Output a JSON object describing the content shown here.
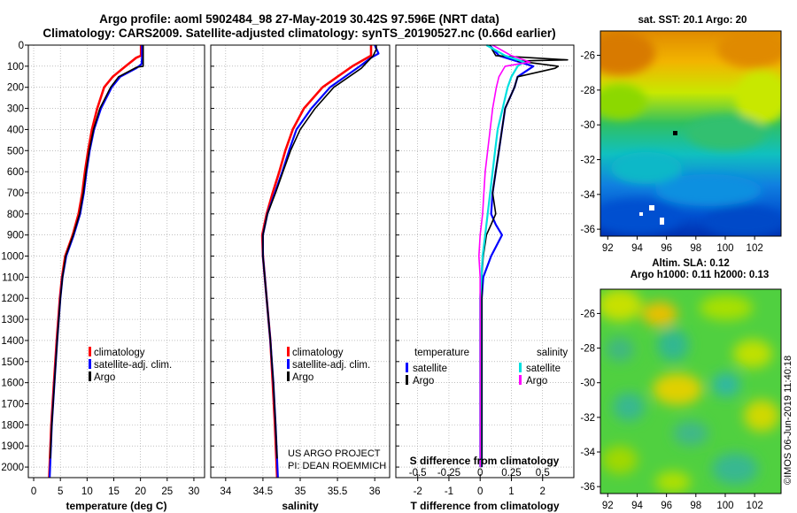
{
  "header": {
    "title_line1": "Argo profile: aoml 5902484_98 27-May-2019 30.42S 97.596E (NRT data)",
    "title_line2": "Climatology: CARS2009. Satellite-adjusted climatology: synTS_20190527.nc (0.66d earlier)"
  },
  "colors": {
    "climatology": "#ff0000",
    "satellite": "#0000ff",
    "argo": "#000000",
    "sat_salinity": "#00e0e0",
    "argo_salinity": "#ff00ff"
  },
  "chart_data": [
    {
      "id": "temperature",
      "type": "line",
      "xlabel": "temperature (deg C)",
      "ylabel": "",
      "xlim": [
        -1,
        32
      ],
      "ylim": [
        2050,
        0
      ],
      "xticks": [
        "0",
        "5",
        "10",
        "15",
        "20",
        "25",
        "30"
      ],
      "yticks": [
        "0",
        "100",
        "200",
        "300",
        "400",
        "500",
        "600",
        "700",
        "800",
        "900",
        "1000",
        "1100",
        "1200",
        "1300",
        "1400",
        "1500",
        "1600",
        "1700",
        "1800",
        "1900",
        "2000"
      ],
      "legend": [
        "climatology",
        "satellite-adj. clim.",
        "Argo"
      ],
      "series": [
        {
          "name": "climatology",
          "depth": [
            0,
            50,
            60,
            100,
            150,
            200,
            300,
            400,
            500,
            600,
            700,
            800,
            900,
            1000,
            1100,
            1200,
            1400,
            1600,
            1800,
            2050
          ],
          "values": [
            20.1,
            20.1,
            19.2,
            17.2,
            14.8,
            13.2,
            11.9,
            10.9,
            10.2,
            9.6,
            9.1,
            8.4,
            7.3,
            5.9,
            5.3,
            4.9,
            4.3,
            3.8,
            3.3,
            2.9
          ]
        },
        {
          "name": "satellite-adj. clim.",
          "depth": [
            0,
            60,
            90,
            110,
            150,
            200,
            300,
            400,
            500,
            600,
            700,
            800,
            900,
            1000,
            1100,
            1200,
            1400,
            1600,
            1800,
            2050
          ],
          "values": [
            20.3,
            20.3,
            20.2,
            19.2,
            16.2,
            14.6,
            12.6,
            11.3,
            10.5,
            9.9,
            9.4,
            8.7,
            7.5,
            6.1,
            5.4,
            5.0,
            4.4,
            3.9,
            3.4,
            3.0
          ]
        },
        {
          "name": "Argo",
          "depth": [
            0,
            100,
            105,
            150,
            200,
            300,
            400,
            500,
            600,
            700,
            800,
            900,
            1000,
            1100,
            1200,
            1400,
            1600,
            1800,
            1960
          ],
          "values": [
            20.5,
            20.5,
            19.3,
            15.9,
            14.4,
            12.4,
            11.2,
            10.4,
            9.8,
            9.3,
            8.6,
            7.4,
            6.0,
            5.4,
            5.0,
            4.4,
            3.9,
            3.4,
            3.1
          ]
        }
      ]
    },
    {
      "id": "salinity",
      "type": "line",
      "xlabel": "salinity",
      "xlim": [
        33.8,
        36.2
      ],
      "ylim": [
        2050,
        0
      ],
      "xticks": [
        "34",
        "34.5",
        "35",
        "35.5",
        "36"
      ],
      "legend": [
        "climatology",
        "satellite-adj. clim.",
        "Argo"
      ],
      "credit": [
        "US ARGO PROJECT",
        "PI: DEAN ROEMMICH"
      ],
      "series": [
        {
          "name": "climatology",
          "depth": [
            0,
            50,
            100,
            200,
            300,
            400,
            500,
            600,
            700,
            800,
            900,
            1000,
            1200,
            1400,
            1600,
            1800,
            2050
          ],
          "values": [
            35.95,
            35.95,
            35.7,
            35.3,
            35.05,
            34.9,
            34.8,
            34.72,
            34.63,
            34.55,
            34.49,
            34.5,
            34.55,
            34.6,
            34.63,
            34.66,
            34.69
          ]
        },
        {
          "name": "satellite-adj. clim.",
          "depth": [
            0,
            40,
            60,
            100,
            200,
            300,
            400,
            500,
            600,
            700,
            800,
            900,
            1000,
            1200,
            1400,
            1600,
            1800,
            2050
          ],
          "values": [
            36.0,
            36.05,
            35.95,
            35.8,
            35.4,
            35.15,
            34.95,
            34.85,
            34.76,
            34.66,
            34.56,
            34.5,
            34.5,
            34.55,
            34.6,
            34.64,
            34.67,
            34.7
          ]
        },
        {
          "name": "Argo",
          "depth": [
            0,
            20,
            50,
            80,
            110,
            200,
            300,
            400,
            500,
            600,
            700,
            800,
            900,
            1000,
            1200,
            1400,
            1600,
            1800,
            1960
          ],
          "values": [
            36.02,
            36.02,
            35.98,
            35.9,
            35.82,
            35.45,
            35.2,
            35.0,
            34.87,
            34.77,
            34.67,
            34.56,
            34.5,
            34.5,
            34.55,
            34.6,
            34.64,
            34.67,
            34.69
          ]
        }
      ]
    },
    {
      "id": "difference",
      "type": "line",
      "xlabel": "T difference from climatology",
      "toplabel": "S difference from climatology",
      "xlim": [
        -2.7,
        3
      ],
      "slim": [
        -0.675,
        0.75
      ],
      "ylim": [
        2050,
        0
      ],
      "xticks": [
        "-2",
        "-1",
        "0",
        "1",
        "2"
      ],
      "sticks": [
        "-0.5",
        "-0.25",
        "0",
        "0.25",
        "0.5"
      ],
      "legend_temperature": {
        "title": "temperature",
        "items": [
          "satellite",
          "Argo"
        ]
      },
      "legend_salinity": {
        "title": "salinity",
        "items": [
          "satellite",
          "Argo"
        ]
      },
      "series": [
        {
          "name": "temperature satellite",
          "depth": [
            0,
            50,
            100,
            150,
            200,
            300,
            400,
            500,
            600,
            700,
            800,
            850,
            900,
            1000,
            1100,
            1200,
            1300,
            1400,
            1600,
            1800,
            2000
          ],
          "values": [
            0.3,
            0.6,
            1.7,
            1.2,
            1.1,
            0.8,
            0.7,
            0.6,
            0.5,
            0.4,
            0.35,
            0.5,
            0.7,
            0.35,
            0.1,
            0.05,
            0.05,
            0.05,
            0.05,
            0.05,
            0.05
          ]
        },
        {
          "name": "temperature Argo",
          "depth": [
            0,
            50,
            70,
            75,
            100,
            110,
            150,
            200,
            300,
            400,
            500,
            600,
            700,
            800,
            850,
            900,
            1000,
            1100,
            1200,
            1400,
            1600,
            1800,
            2000
          ],
          "values": [
            0.3,
            0.5,
            2.8,
            1.2,
            2.5,
            2.4,
            1.2,
            1.1,
            0.8,
            0.7,
            0.6,
            0.5,
            0.4,
            0.5,
            0.35,
            0.2,
            0.1,
            0.05,
            0.05,
            0.05,
            0.05,
            0.05,
            0.05
          ]
        },
        {
          "name": "salinity satellite",
          "depth": [
            0,
            50,
            80,
            100,
            150,
            200,
            300,
            400,
            500,
            600,
            700,
            800,
            900,
            1000,
            1100,
            1200,
            1300,
            1400,
            1600,
            1800,
            2000
          ],
          "values": [
            0.05,
            0.2,
            0.35,
            0.3,
            0.25,
            0.22,
            0.18,
            0.14,
            0.12,
            0.1,
            0.08,
            0.06,
            0.04,
            0.02,
            0.01,
            0.0,
            0.0,
            0.0,
            0.0,
            0.0,
            0.0
          ]
        },
        {
          "name": "salinity Argo",
          "depth": [
            0,
            50,
            80,
            100,
            150,
            200,
            300,
            400,
            500,
            600,
            700,
            800,
            900,
            1000,
            1100,
            1200,
            1300,
            1400,
            1600,
            1800,
            2000
          ],
          "values": [
            0.1,
            0.25,
            0.4,
            0.2,
            0.15,
            0.13,
            0.1,
            0.08,
            0.06,
            0.04,
            0.03,
            0.02,
            0.0,
            -0.01,
            0.0,
            0.0,
            0.0,
            0.0,
            0.0,
            0.0,
            0.0
          ]
        }
      ]
    },
    {
      "id": "sst-map",
      "type": "heatmap",
      "title": "sat. SST: 20.1 Argo: 20",
      "xticks": [
        "92",
        "94",
        "96",
        "98",
        "100",
        "102"
      ],
      "yticks": [
        "-26",
        "-28",
        "-30",
        "-32",
        "-34",
        "-36"
      ],
      "xlim": [
        91.5,
        103.8
      ],
      "ylim": [
        -36.4,
        -24.6
      ],
      "argo_position": [
        97.6,
        -30.42
      ]
    },
    {
      "id": "sla-map",
      "type": "heatmap",
      "title_line1": "Altim. SLA: 0.12",
      "title_line2": "Argo h1000: 0.11 h2000: 0.13",
      "xticks": [
        "92",
        "94",
        "96",
        "98",
        "100",
        "102"
      ],
      "yticks": [
        "-26",
        "-28",
        "-30",
        "-32",
        "-34",
        "-36"
      ],
      "xlim": [
        91.5,
        103.8
      ],
      "ylim": [
        -36.4,
        -24.6
      ]
    }
  ],
  "footer": {
    "stamp": "©IMOS 06-Jun-2019 11:40:18"
  }
}
